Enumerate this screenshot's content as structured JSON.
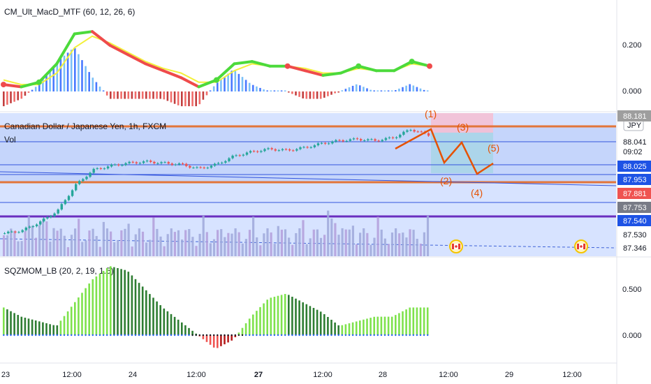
{
  "panes": {
    "macd": {
      "label": "CM_Ult_MacD_MTF (60, 12, 26, 6)",
      "ticks": [
        "0.200",
        "0.000"
      ]
    },
    "main": {
      "title": "Canadian Dollar / Japanese Yen, 1h, FXCM",
      "vol_label": "Vol",
      "currency_badge": "JPY",
      "countdown": "09:02",
      "price_tags": [
        {
          "text": "88.181",
          "bg": "#9e9e9e",
          "fg": "#ffffff"
        },
        {
          "text": "88.041",
          "bg": "#ffffff",
          "fg": "#131722"
        },
        {
          "text": "88.025",
          "bg": "#1e53e5",
          "fg": "#ffffff"
        },
        {
          "text": "87.953",
          "bg": "#1e53e5",
          "fg": "#ffffff"
        },
        {
          "text": "87.881",
          "bg": "#ef5350",
          "fg": "#ffffff"
        },
        {
          "text": "87.753",
          "bg": "#787b86",
          "fg": "#ffffff"
        },
        {
          "text": "87.540",
          "bg": "#1e53e5",
          "fg": "#ffffff"
        },
        {
          "text": "87.530",
          "bg": "#ffffff",
          "fg": "#131722"
        },
        {
          "text": "87.346",
          "bg": "#ffffff",
          "fg": "#131722"
        }
      ],
      "wave_labels": [
        "(1)",
        "(2)",
        "(3)",
        "(4)",
        "(5)"
      ]
    },
    "sqz": {
      "label": "SQZMOM_LB (20, 2, 19, 1.5)",
      "ticks": [
        "0.500",
        "0.000"
      ]
    }
  },
  "time_axis": [
    "23",
    "12:00",
    "24",
    "12:00",
    "27",
    "12:00",
    "28",
    "12:00",
    "29",
    "12:00"
  ],
  "colors": {
    "up": "#26a69a",
    "down": "#ef5350",
    "macd_up": "#4cda3b",
    "macd_down": "#ef4b4b",
    "signal": "#f3f03a",
    "wave": "#e65100"
  },
  "chart_data": [
    {
      "type": "line",
      "title": "CM_Ult_MacD_MTF (60, 12, 26, 6)",
      "ylim": [
        -0.05,
        0.3
      ],
      "x": [
        0,
        5,
        10,
        15,
        20,
        25,
        30,
        35,
        40,
        45,
        50,
        55,
        60,
        65,
        70,
        75,
        80,
        85,
        90,
        95,
        100,
        105,
        110,
        115,
        120
      ],
      "series": [
        {
          "name": "",
          "values": [
            0.03,
            0.02,
            0.04,
            0.12,
            0.25,
            0.26,
            0.2,
            0.16,
            0.12,
            0.09,
            0.06,
            0.02,
            0.05,
            0.12,
            0.13,
            0.11,
            0.11,
            0.09,
            0.07,
            0.08,
            0.11,
            0.09,
            0.09,
            0.13,
            0.11
          ]
        },
        {
          "name": "",
          "values": [
            0.05,
            0.03,
            0.03,
            0.08,
            0.19,
            0.24,
            0.21,
            0.17,
            0.13,
            0.1,
            0.08,
            0.04,
            0.04,
            0.09,
            0.12,
            0.11,
            0.11,
            0.1,
            0.08,
            0.08,
            0.1,
            0.09,
            0.09,
            0.12,
            0.11
          ]
        }
      ]
    },
    {
      "type": "bar",
      "title": "Canadian Dollar / Japanese Yen, 1h, FXCM",
      "ylim": [
        87.3,
        88.2
      ],
      "x": [
        0,
        5,
        10,
        15,
        20,
        25,
        30,
        35,
        40,
        45,
        50,
        55,
        60,
        65,
        70,
        75,
        80,
        85,
        90,
        95,
        100,
        105,
        110,
        115,
        120
      ],
      "close": [
        87.42,
        87.44,
        87.5,
        87.58,
        87.76,
        87.87,
        87.9,
        87.92,
        87.93,
        87.92,
        87.91,
        87.88,
        87.91,
        87.97,
        88.0,
        88.02,
        88.01,
        88.03,
        88.06,
        88.08,
        88.09,
        88.08,
        88.1,
        88.16,
        88.12
      ]
    },
    {
      "type": "bar",
      "title": "SQZMOM_LB (20, 2, 19, 1.5)",
      "ylim": [
        -0.3,
        0.9
      ],
      "x": [
        0,
        5,
        10,
        15,
        20,
        25,
        30,
        35,
        40,
        45,
        50,
        55,
        60,
        65,
        70,
        75,
        80,
        85,
        90,
        95,
        100,
        105,
        110,
        115,
        120
      ],
      "values": [
        0.3,
        0.2,
        0.15,
        0.1,
        0.35,
        0.6,
        0.75,
        0.7,
        0.5,
        0.3,
        0.15,
        0.0,
        -0.15,
        -0.05,
        0.2,
        0.4,
        0.45,
        0.35,
        0.25,
        0.1,
        0.15,
        0.2,
        0.2,
        0.3,
        0.3
      ]
    }
  ]
}
